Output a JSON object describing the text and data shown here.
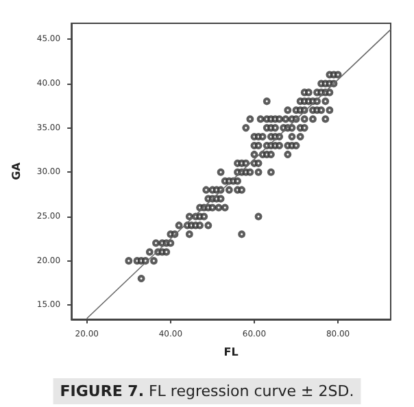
{
  "chart_data": {
    "type": "scatter",
    "xlabel": "FL",
    "ylabel": "GA",
    "annotations": [
      "FIGURE 7. FL regression curve ± 2SD."
    ],
    "xlim": [
      16.3,
      92.6
    ],
    "ylim": [
      13.4,
      46.8
    ],
    "xticks": [
      {
        "value": 20,
        "label": "20.00"
      },
      {
        "value": 40,
        "label": "40.00"
      },
      {
        "value": 60,
        "label": "60.00"
      },
      {
        "value": 80,
        "label": "80.00"
      }
    ],
    "yticks": [
      {
        "value": 15,
        "label": "15.00"
      },
      {
        "value": 20,
        "label": "20.00"
      },
      {
        "value": 25,
        "label": "25.00"
      },
      {
        "value": 30,
        "label": "30.00"
      },
      {
        "value": 35,
        "label": "35.00"
      },
      {
        "value": 40,
        "label": "40.00"
      },
      {
        "value": 45,
        "label": "45.00"
      }
    ],
    "grid": false,
    "series": [
      {
        "color": "#333333",
        "marker": "circle",
        "x": [
          78,
          79,
          80,
          76,
          77,
          78,
          79,
          72,
          73,
          75,
          76,
          77,
          78,
          63,
          71,
          72,
          73,
          74,
          75,
          77,
          68,
          70,
          71,
          72,
          74,
          75,
          76,
          78,
          59,
          61.5,
          63,
          64,
          65,
          66,
          67.5,
          69,
          70,
          72,
          74,
          77,
          58,
          63,
          64,
          65,
          67,
          68,
          69,
          71,
          72,
          60,
          61,
          62,
          64,
          65,
          66,
          69,
          71,
          60,
          61,
          63,
          64,
          65,
          66,
          68,
          69,
          70,
          60,
          62,
          63,
          64,
          68,
          56,
          57,
          58,
          60,
          61,
          52,
          56,
          57,
          58,
          59,
          61,
          64,
          53,
          54,
          55,
          56,
          48.5,
          50,
          51,
          52,
          54,
          56,
          57,
          49,
          50,
          51,
          52,
          47,
          48,
          49,
          50,
          51.5,
          53,
          44.5,
          46,
          47,
          48,
          61,
          42,
          44,
          45,
          46,
          47,
          49,
          40,
          41,
          44.5,
          57,
          36.5,
          38,
          39,
          40,
          35,
          37,
          38,
          39,
          30,
          32,
          33,
          34,
          36,
          33
        ],
        "values": [
          41,
          41,
          41,
          40,
          40,
          40,
          40,
          39,
          39,
          39,
          39,
          39,
          39,
          38,
          38,
          38,
          38,
          38,
          38,
          38,
          37,
          37,
          37,
          37,
          37,
          37,
          37,
          37,
          36,
          36,
          36,
          36,
          36,
          36,
          36,
          36,
          36,
          36,
          36,
          36,
          35,
          35,
          35,
          35,
          35,
          35,
          35,
          35,
          35,
          34,
          34,
          34,
          34,
          34,
          34,
          34,
          34,
          33,
          33,
          33,
          33,
          33,
          33,
          33,
          33,
          33,
          32,
          32,
          32,
          32,
          32,
          31,
          31,
          31,
          31,
          31,
          30,
          30,
          30,
          30,
          30,
          30,
          30,
          29,
          29,
          29,
          29,
          28,
          28,
          28,
          28,
          28,
          28,
          28,
          27,
          27,
          27,
          27,
          26,
          26,
          26,
          26,
          26,
          26,
          25,
          25,
          25,
          25,
          25,
          24,
          24,
          24,
          24,
          24,
          24,
          23,
          23,
          23,
          23,
          22,
          22,
          22,
          22,
          21,
          21,
          21,
          21,
          20,
          20,
          20,
          20,
          20,
          18
        ]
      },
      {
        "type": "line",
        "marker": "none",
        "color": "#666666",
        "x": [
          20,
          92.6
        ],
        "values": [
          13.5,
          46.1
        ]
      }
    ]
  }
}
